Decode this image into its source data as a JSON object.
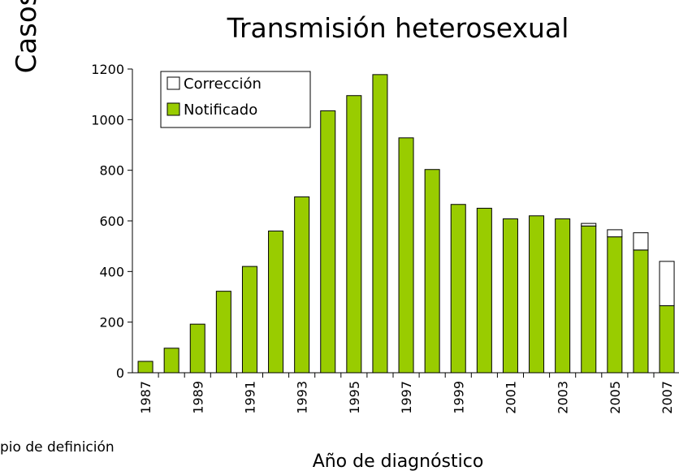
{
  "chart_data": {
    "type": "stacked_bar",
    "title": "Transmisión heterosexual",
    "y_label": "Casos",
    "x_label": "Año de diagnóstico",
    "note": "pio de definición",
    "categories": [
      "1987",
      null,
      "1989",
      null,
      "1991",
      null,
      "1993",
      null,
      "1995",
      null,
      "1997",
      null,
      "1999",
      null,
      "2001",
      null,
      "2003",
      null,
      "2005",
      null,
      "2007"
    ],
    "series": [
      {
        "name": "Notificado",
        "color": "#99cc00",
        "values": [
          45,
          97,
          192,
          322,
          420,
          560,
          695,
          1035,
          1095,
          1178,
          928,
          803,
          665,
          650,
          608,
          620,
          608,
          580,
          537,
          485,
          265
        ]
      },
      {
        "name": "Corrección",
        "color": "#ffffff",
        "values": [
          0,
          0,
          0,
          0,
          0,
          0,
          0,
          0,
          0,
          0,
          0,
          0,
          0,
          0,
          0,
          0,
          0,
          10,
          28,
          68,
          175
        ]
      }
    ],
    "ylim": [
      0,
      1200
    ],
    "yticks": [
      0,
      200,
      400,
      600,
      800,
      1000,
      1200
    ],
    "legend": "top-left"
  }
}
